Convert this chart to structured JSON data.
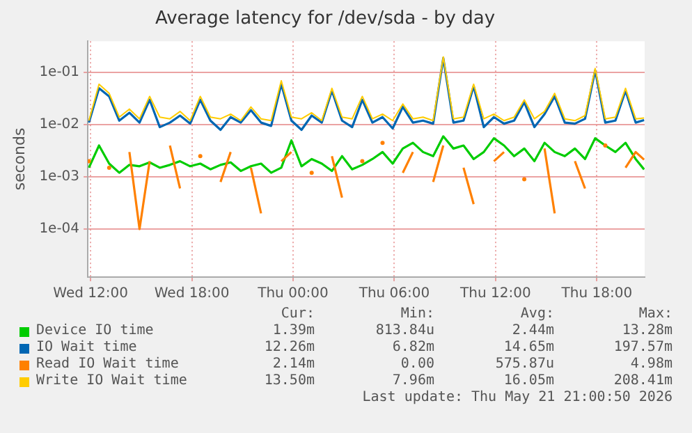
{
  "chart_data": {
    "type": "line",
    "title": "Average latency for /dev/sda - by day",
    "ylabel": "seconds",
    "log": "y",
    "grid": true,
    "legend": "bottom",
    "marker": "none",
    "line_style": "solid",
    "x": [
      "2026-05-20T11:54",
      "2026-05-20T12:30",
      "2026-05-20T13:06",
      "2026-05-20T13:42",
      "2026-05-20T14:18",
      "2026-05-20T14:54",
      "2026-05-20T15:30",
      "2026-05-20T16:06",
      "2026-05-20T16:42",
      "2026-05-20T17:18",
      "2026-05-20T17:54",
      "2026-05-20T18:30",
      "2026-05-20T19:06",
      "2026-05-20T19:42",
      "2026-05-20T20:18",
      "2026-05-20T20:54",
      "2026-05-20T21:30",
      "2026-05-20T22:06",
      "2026-05-20T22:42",
      "2026-05-20T23:18",
      "2026-05-20T23:54",
      "2026-05-21T00:30",
      "2026-05-21T01:06",
      "2026-05-21T01:42",
      "2026-05-21T02:18",
      "2026-05-21T02:54",
      "2026-05-21T03:30",
      "2026-05-21T04:06",
      "2026-05-21T04:42",
      "2026-05-21T05:18",
      "2026-05-21T05:54",
      "2026-05-21T06:30",
      "2026-05-21T07:06",
      "2026-05-21T07:42",
      "2026-05-21T08:18",
      "2026-05-21T08:54",
      "2026-05-21T09:30",
      "2026-05-21T10:06",
      "2026-05-21T10:42",
      "2026-05-21T11:18",
      "2026-05-21T11:54",
      "2026-05-21T12:30",
      "2026-05-21T13:06",
      "2026-05-21T13:42",
      "2026-05-21T14:18",
      "2026-05-21T14:54",
      "2026-05-21T15:30",
      "2026-05-21T16:06",
      "2026-05-21T16:42",
      "2026-05-21T17:18",
      "2026-05-21T17:54",
      "2026-05-21T18:30",
      "2026-05-21T19:06",
      "2026-05-21T19:42",
      "2026-05-21T20:18",
      "2026-05-21T20:48"
    ],
    "xlim": [
      "2026-05-20T11:50",
      "2026-05-21T20:50"
    ],
    "xticks": [
      {
        "value": "2026-05-20T12:00",
        "label": "Wed 12:00"
      },
      {
        "value": "2026-05-20T18:00",
        "label": "Wed 18:00"
      },
      {
        "value": "2026-05-21T00:00",
        "label": "Thu 00:00"
      },
      {
        "value": "2026-05-21T06:00",
        "label": "Thu 06:00"
      },
      {
        "value": "2026-05-21T12:00",
        "label": "Thu 12:00"
      },
      {
        "value": "2026-05-21T18:00",
        "label": "Thu 18:00"
      }
    ],
    "ylim": [
      1.2e-05,
      0.4
    ],
    "yticks": [
      {
        "value": 0.0001,
        "label": "1e-04"
      },
      {
        "value": 0.001,
        "label": "1e-03"
      },
      {
        "value": 0.01,
        "label": "1e-02"
      },
      {
        "value": 0.1,
        "label": "1e-01"
      }
    ],
    "series": [
      {
        "name": "Device IO time",
        "color": "#00cc00",
        "values": [
          0.0015,
          0.004,
          0.0018,
          0.0012,
          0.0017,
          0.0016,
          0.0019,
          0.0015,
          0.0017,
          0.002,
          0.0016,
          0.0018,
          0.0014,
          0.0017,
          0.0019,
          0.0013,
          0.0016,
          0.0018,
          0.0012,
          0.0015,
          0.005,
          0.0016,
          0.0022,
          0.0018,
          0.0013,
          0.0025,
          0.0014,
          0.0017,
          0.0022,
          0.003,
          0.0018,
          0.0035,
          0.0045,
          0.003,
          0.0025,
          0.006,
          0.0035,
          0.004,
          0.0022,
          0.003,
          0.0055,
          0.004,
          0.0025,
          0.0035,
          0.002,
          0.0045,
          0.003,
          0.0025,
          0.0035,
          0.0022,
          0.0055,
          0.004,
          0.003,
          0.0045,
          0.0022,
          0.00139
        ]
      },
      {
        "name": "IO Wait time",
        "color": "#0066b3",
        "values": [
          0.011,
          0.05,
          0.035,
          0.012,
          0.017,
          0.011,
          0.03,
          0.009,
          0.011,
          0.015,
          0.0105,
          0.03,
          0.012,
          0.008,
          0.014,
          0.011,
          0.019,
          0.011,
          0.0095,
          0.06,
          0.012,
          0.008,
          0.015,
          0.011,
          0.045,
          0.012,
          0.009,
          0.03,
          0.011,
          0.014,
          0.0085,
          0.022,
          0.011,
          0.012,
          0.0105,
          0.19,
          0.011,
          0.012,
          0.055,
          0.009,
          0.014,
          0.0105,
          0.012,
          0.027,
          0.009,
          0.016,
          0.035,
          0.011,
          0.0105,
          0.013,
          0.11,
          0.011,
          0.012,
          0.045,
          0.011,
          0.01226
        ]
      },
      {
        "name": "Read IO Wait time",
        "color": "#ff8000",
        "values": [
          0.002,
          null,
          0.0015,
          null,
          0.003,
          0.0001,
          0.002,
          null,
          0.004,
          0.0006,
          null,
          0.0025,
          null,
          0.0008,
          0.003,
          null,
          0.0015,
          0.0002,
          null,
          0.002,
          0.003,
          null,
          0.0012,
          null,
          0.0025,
          0.0004,
          null,
          0.002,
          null,
          0.0045,
          null,
          0.0012,
          0.003,
          null,
          0.0008,
          0.004,
          null,
          0.0015,
          0.0003,
          null,
          0.002,
          0.003,
          null,
          0.0009,
          null,
          0.0035,
          0.0002,
          null,
          0.002,
          0.0006,
          null,
          0.004,
          null,
          0.0015,
          0.003,
          0.00214
        ]
      },
      {
        "name": "Write IO Wait time",
        "color": "#ffcc00",
        "values": [
          0.012,
          0.06,
          0.04,
          0.014,
          0.02,
          0.013,
          0.035,
          0.014,
          0.013,
          0.018,
          0.012,
          0.035,
          0.014,
          0.013,
          0.016,
          0.012,
          0.022,
          0.013,
          0.012,
          0.07,
          0.014,
          0.013,
          0.017,
          0.012,
          0.05,
          0.014,
          0.013,
          0.035,
          0.013,
          0.016,
          0.012,
          0.025,
          0.013,
          0.014,
          0.012,
          0.2,
          0.013,
          0.014,
          0.06,
          0.013,
          0.016,
          0.012,
          0.014,
          0.03,
          0.013,
          0.018,
          0.04,
          0.013,
          0.012,
          0.015,
          0.12,
          0.013,
          0.014,
          0.05,
          0.013,
          0.0135
        ]
      }
    ],
    "annotations": [
      "Cur:",
      "Min:",
      "Avg:",
      "Max:",
      "1.39m",
      "813.84u",
      "2.44m",
      "13.28m",
      "12.26m",
      "6.82m",
      "14.65m",
      "197.57m",
      "2.14m",
      "0.00",
      "575.87u",
      "4.98m",
      "13.50m",
      "7.96m",
      "16.05m",
      "208.41m",
      "Last update: Thu May 21 21:00:50 2026"
    ]
  }
}
